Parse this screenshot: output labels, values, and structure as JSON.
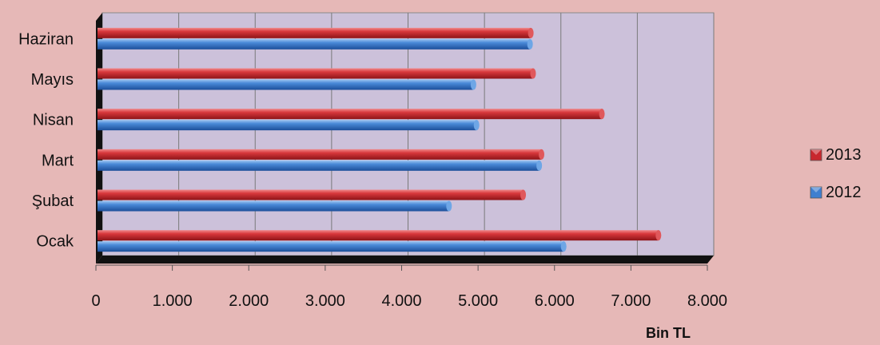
{
  "chart_data": {
    "type": "bar",
    "orientation": "horizontal",
    "categories": [
      "Ocak",
      "Şubat",
      "Mart",
      "Nisan",
      "Mayıs",
      "Haziran"
    ],
    "series": [
      {
        "name": "2012",
        "color": "#3f7fd0",
        "values": [
          6120,
          4620,
          5800,
          4980,
          4940,
          5680
        ]
      },
      {
        "name": "2013",
        "color": "#c8282e",
        "values": [
          7360,
          5590,
          5830,
          6620,
          5720,
          5690
        ]
      }
    ],
    "x_ticks": [
      "0",
      "1.000",
      "2.000",
      "3.000",
      "4.000",
      "5.000",
      "6.000",
      "7.000",
      "8.000"
    ],
    "xlim": [
      0,
      8000
    ],
    "xlabel": "Bin TL",
    "ylabel": "",
    "title": "",
    "grid": true,
    "legend_position": "right",
    "legend_order": [
      "2013",
      "2012"
    ],
    "style": "3d",
    "plot_background": "#ccc1da",
    "page_background": "#e6b8b7"
  }
}
